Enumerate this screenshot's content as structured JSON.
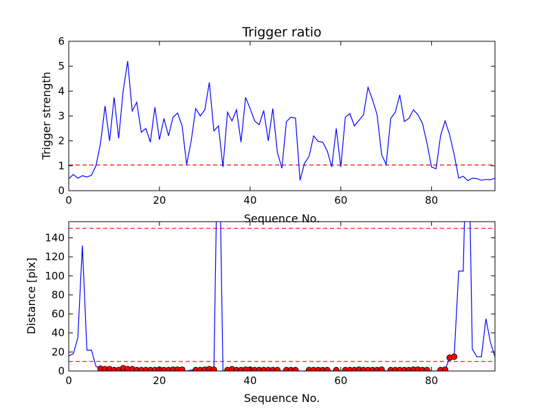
{
  "chart_data": [
    {
      "type": "line",
      "title": "Trigger ratio",
      "xlabel": "Sequence No.",
      "ylabel": "Trigger strength",
      "xlim": [
        0,
        94
      ],
      "ylim": [
        0,
        6
      ],
      "xticks": [
        0,
        20,
        40,
        60,
        80
      ],
      "yticks": [
        0,
        1,
        2,
        3,
        4,
        5,
        6
      ],
      "threshold": 1.03,
      "line_color": "#0000ff",
      "threshold_color": "#ff0000",
      "series": [
        {
          "values": [
            0.48,
            0.65,
            0.5,
            0.6,
            0.55,
            0.62,
            1.0,
            1.9,
            3.4,
            2.0,
            3.75,
            2.1,
            4.0,
            5.2,
            3.2,
            3.55,
            2.35,
            2.5,
            1.95,
            3.35,
            2.05,
            2.9,
            2.2,
            2.95,
            3.12,
            2.6,
            1.05,
            2.0,
            3.3,
            3.0,
            3.25,
            4.35,
            2.4,
            2.6,
            0.95,
            3.15,
            2.8,
            3.25,
            1.95,
            3.75,
            3.3,
            2.8,
            2.65,
            3.22,
            2.0,
            3.3,
            1.55,
            0.9,
            2.78,
            2.95,
            2.92,
            0.42,
            1.1,
            1.38,
            2.2,
            1.98,
            1.95,
            1.6,
            0.95,
            2.5,
            0.95,
            2.95,
            3.1,
            2.6,
            2.82,
            3.05,
            4.15,
            3.65,
            3.05,
            1.45,
            1.05,
            2.9,
            3.15,
            3.85,
            2.78,
            2.9,
            3.25,
            3.05,
            2.7,
            1.9,
            0.95,
            0.88,
            2.22,
            2.8,
            2.25,
            1.45,
            0.5,
            0.58,
            0.4,
            0.5,
            0.48,
            0.42,
            0.45,
            0.44,
            0.5
          ]
        }
      ]
    },
    {
      "type": "line",
      "title": "",
      "xlabel": "Sequence No.",
      "ylabel": "Distance [pix]",
      "xlim": [
        0,
        94
      ],
      "ylim": [
        0,
        157
      ],
      "xticks": [
        0,
        20,
        40,
        60,
        80
      ],
      "yticks": [
        0,
        20,
        40,
        60,
        80,
        100,
        120,
        140
      ],
      "thresholds": [
        10,
        150
      ],
      "line_color": "#0000ff",
      "marker_color": "#ff0000",
      "threshold_color": "#ff0000",
      "series": [
        {
          "values": [
            16,
            18,
            35,
            132,
            22,
            22,
            5,
            2,
            2,
            2,
            1,
            1,
            3,
            2,
            2,
            1,
            1,
            1,
            1,
            1,
            1,
            1,
            1,
            1,
            1,
            1,
            0,
            1,
            1,
            1,
            2,
            2,
            0,
            300,
            0,
            1,
            2,
            1,
            1,
            1,
            1,
            1,
            1,
            1,
            1,
            1,
            1,
            0,
            1,
            1,
            1,
            0,
            0,
            1,
            1,
            1,
            1,
            1,
            0,
            1,
            0,
            1,
            1,
            1,
            1,
            1,
            1,
            1,
            1,
            1,
            0,
            1,
            1,
            1,
            1,
            1,
            1,
            1,
            1,
            1,
            0,
            0,
            1,
            1,
            14,
            15,
            105,
            105,
            300,
            23,
            15,
            15,
            55,
            30,
            15
          ]
        }
      ],
      "markers": [
        {
          "x": 7,
          "y": 2.5
        },
        {
          "x": 8,
          "y": 2
        },
        {
          "x": 9,
          "y": 2
        },
        {
          "x": 10,
          "y": 1
        },
        {
          "x": 11,
          "y": 1
        },
        {
          "x": 12,
          "y": 3
        },
        {
          "x": 13,
          "y": 2
        },
        {
          "x": 14,
          "y": 2
        },
        {
          "x": 15,
          "y": 1
        },
        {
          "x": 16,
          "y": 1
        },
        {
          "x": 17,
          "y": 1
        },
        {
          "x": 18,
          "y": 1
        },
        {
          "x": 19,
          "y": 1
        },
        {
          "x": 20,
          "y": 1.5
        },
        {
          "x": 21,
          "y": 1
        },
        {
          "x": 22,
          "y": 1
        },
        {
          "x": 23,
          "y": 1.5
        },
        {
          "x": 24,
          "y": 1.5
        },
        {
          "x": 25,
          "y": 1.5
        },
        {
          "x": 28,
          "y": 1
        },
        {
          "x": 29,
          "y": 1
        },
        {
          "x": 30,
          "y": 1.5
        },
        {
          "x": 31,
          "y": 2
        },
        {
          "x": 32,
          "y": 1.5
        },
        {
          "x": 35,
          "y": 1
        },
        {
          "x": 36,
          "y": 2
        },
        {
          "x": 37,
          "y": 1
        },
        {
          "x": 38,
          "y": 1
        },
        {
          "x": 39,
          "y": 1.5
        },
        {
          "x": 40,
          "y": 1.5
        },
        {
          "x": 41,
          "y": 1
        },
        {
          "x": 42,
          "y": 1
        },
        {
          "x": 43,
          "y": 1
        },
        {
          "x": 44,
          "y": 1
        },
        {
          "x": 45,
          "y": 1
        },
        {
          "x": 46,
          "y": 1
        },
        {
          "x": 48,
          "y": 1
        },
        {
          "x": 49,
          "y": 1
        },
        {
          "x": 50,
          "y": 1
        },
        {
          "x": 53,
          "y": 1
        },
        {
          "x": 54,
          "y": 1
        },
        {
          "x": 55,
          "y": 1
        },
        {
          "x": 56,
          "y": 1
        },
        {
          "x": 57,
          "y": 1
        },
        {
          "x": 59,
          "y": 1
        },
        {
          "x": 61,
          "y": 1
        },
        {
          "x": 62,
          "y": 1
        },
        {
          "x": 63,
          "y": 1
        },
        {
          "x": 64,
          "y": 1.5
        },
        {
          "x": 65,
          "y": 1
        },
        {
          "x": 66,
          "y": 1
        },
        {
          "x": 67,
          "y": 1
        },
        {
          "x": 68,
          "y": 1
        },
        {
          "x": 69,
          "y": 1.5
        },
        {
          "x": 71,
          "y": 1
        },
        {
          "x": 72,
          "y": 1
        },
        {
          "x": 73,
          "y": 1
        },
        {
          "x": 74,
          "y": 1
        },
        {
          "x": 75,
          "y": 1
        },
        {
          "x": 76,
          "y": 1.5
        },
        {
          "x": 77,
          "y": 1.5
        },
        {
          "x": 78,
          "y": 1
        },
        {
          "x": 79,
          "y": 1
        },
        {
          "x": 82,
          "y": 1
        },
        {
          "x": 83,
          "y": 1.5
        },
        {
          "x": 84,
          "y": 14
        },
        {
          "x": 85,
          "y": 15
        }
      ]
    }
  ]
}
